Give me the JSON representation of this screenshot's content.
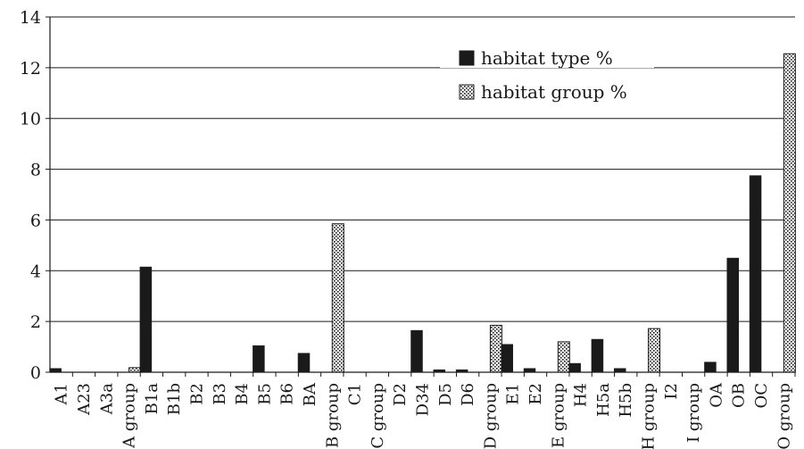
{
  "chart_data": {
    "type": "bar",
    "ylim": [
      0,
      14
    ],
    "yticks": [
      "0",
      "2",
      "4",
      "6",
      "8",
      "10",
      "12",
      "14"
    ],
    "grid": true,
    "legend_position": "top-right",
    "categories": [
      "A1",
      "A23",
      "A3a",
      "A group",
      "B1a",
      "B1b",
      "B2",
      "B3",
      "B4",
      "B5",
      "B6",
      "BA",
      "B group",
      "C1",
      "C group",
      "D2",
      "D34",
      "D5",
      "D6",
      "D group",
      "E1",
      "E2",
      "E group",
      "H4",
      "H5a",
      "H5b",
      "H group",
      "I2",
      "I group",
      "OA",
      "OB",
      "OC",
      "O group"
    ],
    "series": [
      {
        "name": "habitat type %",
        "color": "#1a1a1a",
        "fill": "solid",
        "values": [
          0.15,
          0,
          0,
          0,
          4.15,
          0,
          0,
          0,
          0,
          1.05,
          0,
          0.75,
          0,
          0,
          0,
          0,
          1.65,
          0.1,
          0.1,
          0,
          1.1,
          0.15,
          0,
          0.35,
          1.3,
          0.15,
          0,
          0,
          0,
          0.4,
          4.5,
          7.75,
          0
        ]
      },
      {
        "name": "habitat group %",
        "color": "#1a1a1a",
        "fill": "dotted",
        "values": [
          0,
          0,
          0,
          0.18,
          0,
          0,
          0,
          0,
          0,
          0,
          0,
          0,
          5.85,
          0,
          0,
          0,
          0,
          0,
          0,
          1.85,
          0,
          0,
          1.2,
          0,
          0,
          0,
          1.72,
          0,
          0,
          0,
          0,
          0,
          12.55
        ]
      }
    ]
  }
}
